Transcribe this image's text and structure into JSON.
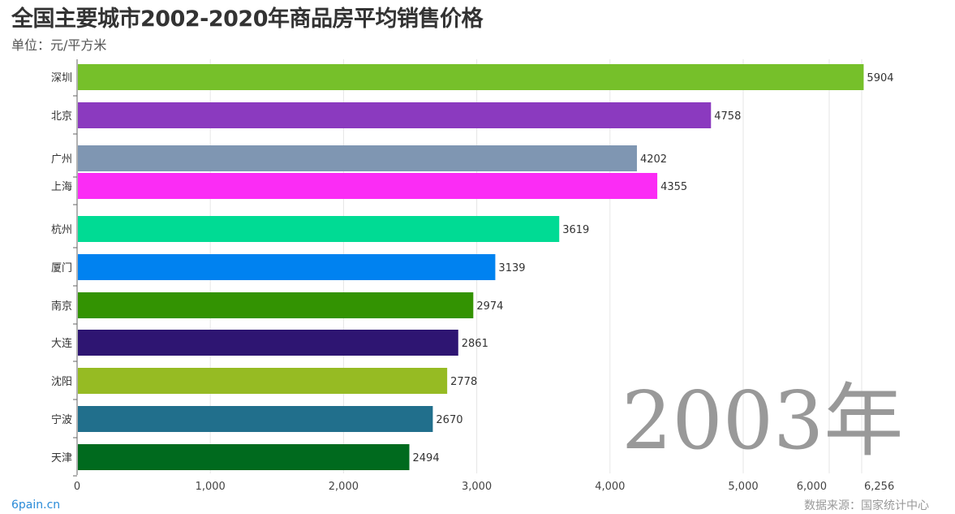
{
  "chart_data": {
    "type": "bar",
    "orientation": "horizontal",
    "title": "全国主要城市2002-2020年商品房平均销售价格",
    "subtitle": "单位：元/平方米",
    "year_label": "2003年",
    "categories": [
      "深圳",
      "北京",
      "广州",
      "上海",
      "杭州",
      "厦门",
      "南京",
      "大连",
      "沈阳",
      "宁波",
      "天津"
    ],
    "values": [
      5904,
      4758,
      4202,
      4355,
      3619,
      3139,
      2974,
      2861,
      2778,
      2670,
      2494
    ],
    "colors": [
      "#76c02a",
      "#8b3abf",
      "#7f96b2",
      "#fb2cf5",
      "#00db94",
      "#0082f0",
      "#339302",
      "#2e1572",
      "#96bb23",
      "#216f8c",
      "#006a1e"
    ],
    "x_ticks": [
      {
        "v": 0,
        "label": "0"
      },
      {
        "v": 1000,
        "label": "1,000"
      },
      {
        "v": 2000,
        "label": "2,000"
      },
      {
        "v": 3000,
        "label": "3,000"
      },
      {
        "v": 4000,
        "label": "4,000"
      },
      {
        "v": 5000,
        "label": "5,000"
      },
      {
        "v": 6000,
        "label": "6,000"
      },
      {
        "v": 6256,
        "label": "6,256"
      }
    ],
    "grid": true
  },
  "footer": {
    "site": "6pain.cn",
    "source": "数据来源：国家统计中心"
  }
}
